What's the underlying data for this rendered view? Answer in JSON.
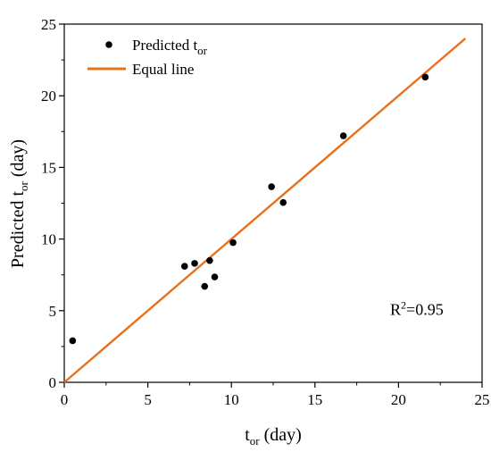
{
  "chart_data": {
    "type": "scatter",
    "xlabel": {
      "base": "t",
      "sub": "or",
      "rest": " (day)"
    },
    "ylabel": {
      "base": "Predicted t",
      "sub": "or",
      "rest": " (day)"
    },
    "xlim": [
      0,
      25
    ],
    "ylim": [
      0,
      25
    ],
    "xticks": [
      0,
      5,
      10,
      15,
      20,
      25
    ],
    "yticks": [
      0,
      5,
      10,
      15,
      20,
      25
    ],
    "grid": false,
    "legend_position": "top-left",
    "series": [
      {
        "name": {
          "base": "Predicted t",
          "sub": "or"
        },
        "kind": "scatter",
        "color": "#000000",
        "points": [
          {
            "x": 0.5,
            "y": 2.9
          },
          {
            "x": 7.2,
            "y": 8.1
          },
          {
            "x": 7.8,
            "y": 8.3
          },
          {
            "x": 8.4,
            "y": 6.7
          },
          {
            "x": 8.7,
            "y": 8.5
          },
          {
            "x": 9.0,
            "y": 7.35
          },
          {
            "x": 10.1,
            "y": 9.75
          },
          {
            "x": 12.4,
            "y": 13.65
          },
          {
            "x": 13.1,
            "y": 12.55
          },
          {
            "x": 16.7,
            "y": 17.2
          },
          {
            "x": 21.6,
            "y": 21.3
          }
        ]
      },
      {
        "name": "Equal line",
        "kind": "line",
        "color": "#e8711c",
        "points": [
          {
            "x": 0,
            "y": 0
          },
          {
            "x": 24,
            "y": 24
          }
        ]
      }
    ],
    "annotation": {
      "base": "R",
      "sup": "2",
      "rest": "=0.95",
      "x": 19.5,
      "y": 4.7
    }
  }
}
